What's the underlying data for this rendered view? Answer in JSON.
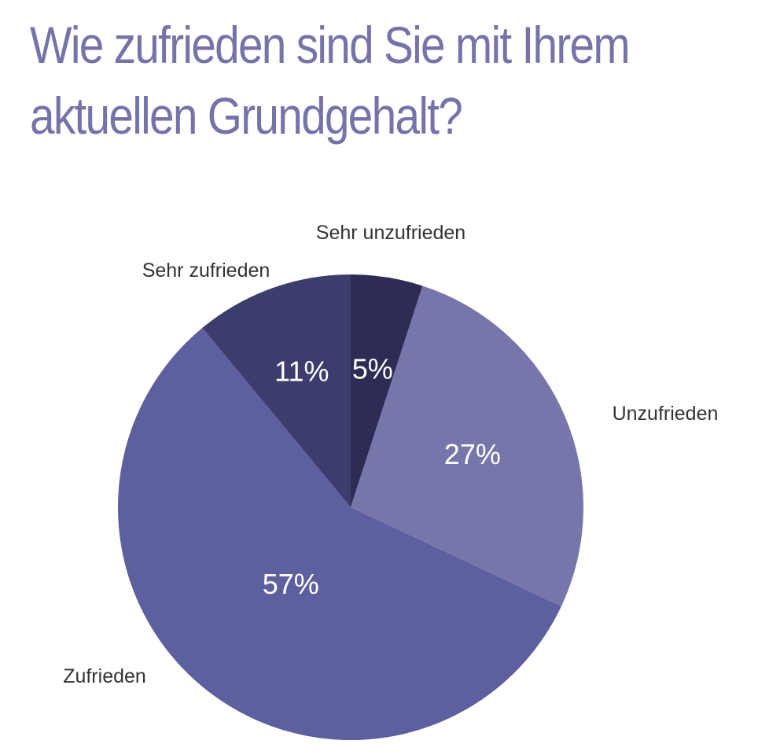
{
  "chart_data": {
    "type": "pie",
    "title_lines": [
      "Wie zufrieden sind Sie mit Ihrem",
      "aktuellen Grundgehalt?"
    ],
    "slices": [
      {
        "label": "Sehr unzufrieden",
        "value": 5,
        "value_label": "5%",
        "color": "#2e2c55"
      },
      {
        "label": "Unzufrieden",
        "value": 27,
        "value_label": "27%",
        "color": "#7676ab"
      },
      {
        "label": "Zufrieden",
        "value": 57,
        "value_label": "57%",
        "color": "#5d5f9f"
      },
      {
        "label": "Sehr zufrieden",
        "value": 11,
        "value_label": "11%",
        "color": "#3c3d6c"
      }
    ],
    "title_color": "#7673a9"
  }
}
